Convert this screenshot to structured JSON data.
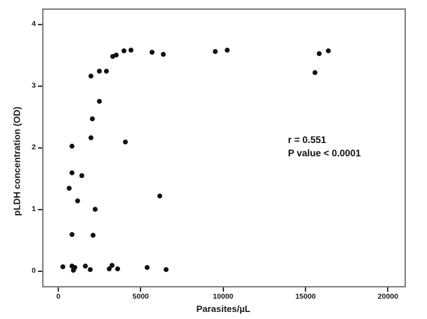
{
  "figure": {
    "background_color": "#ffffff",
    "frame_color": "#7f7f7f",
    "dot_color": "#111111",
    "text_color": "#1a1a1a"
  },
  "chart_data": {
    "type": "scatter",
    "title": "",
    "xlabel": "Parasites/µL",
    "ylabel": "pLDH concentration (OD)",
    "x_ticks": [
      "0",
      "5000",
      "10000",
      "15000",
      "20000"
    ],
    "x_tick_values": [
      0,
      5000,
      10000,
      15000,
      20000
    ],
    "y_ticks": [
      "0",
      "1",
      "2",
      "3",
      "4"
    ],
    "y_tick_values": [
      0,
      1,
      2,
      3,
      4
    ],
    "xlim": [
      -900,
      21000
    ],
    "ylim": [
      -0.26,
      4.26
    ],
    "grid": false,
    "legend": "none",
    "marker": "filled-black-circle",
    "annotation": {
      "line1": "r = 0.551",
      "line2": "P value < 0.0001"
    },
    "points": [
      [
        260,
        0.07
      ],
      [
        640,
        1.35
      ],
      [
        810,
        0.6
      ],
      [
        810,
        0.09
      ],
      [
        850,
        2.03
      ],
      [
        850,
        1.6
      ],
      [
        900,
        0.02
      ],
      [
        1000,
        0.06
      ],
      [
        1190,
        1.14
      ],
      [
        1410,
        1.55
      ],
      [
        1620,
        0.09
      ],
      [
        1920,
        0.03
      ],
      [
        2000,
        3.17
      ],
      [
        2000,
        2.17
      ],
      [
        2050,
        2.47
      ],
      [
        2130,
        0.58
      ],
      [
        2220,
        1.01
      ],
      [
        2510,
        3.24
      ],
      [
        2510,
        2.76
      ],
      [
        2900,
        3.25
      ],
      [
        3110,
        0.04
      ],
      [
        3240,
        0.1
      ],
      [
        3300,
        3.48
      ],
      [
        3500,
        3.51
      ],
      [
        3580,
        0.04
      ],
      [
        4000,
        3.57
      ],
      [
        4050,
        2.1
      ],
      [
        4430,
        3.58
      ],
      [
        5410,
        0.06
      ],
      [
        5670,
        3.55
      ],
      [
        6140,
        1.22
      ],
      [
        6390,
        3.52
      ],
      [
        6560,
        0.03
      ],
      [
        9540,
        3.56
      ],
      [
        10230,
        3.58
      ],
      [
        15590,
        3.22
      ],
      [
        15810,
        3.53
      ],
      [
        16400,
        3.57
      ]
    ]
  }
}
